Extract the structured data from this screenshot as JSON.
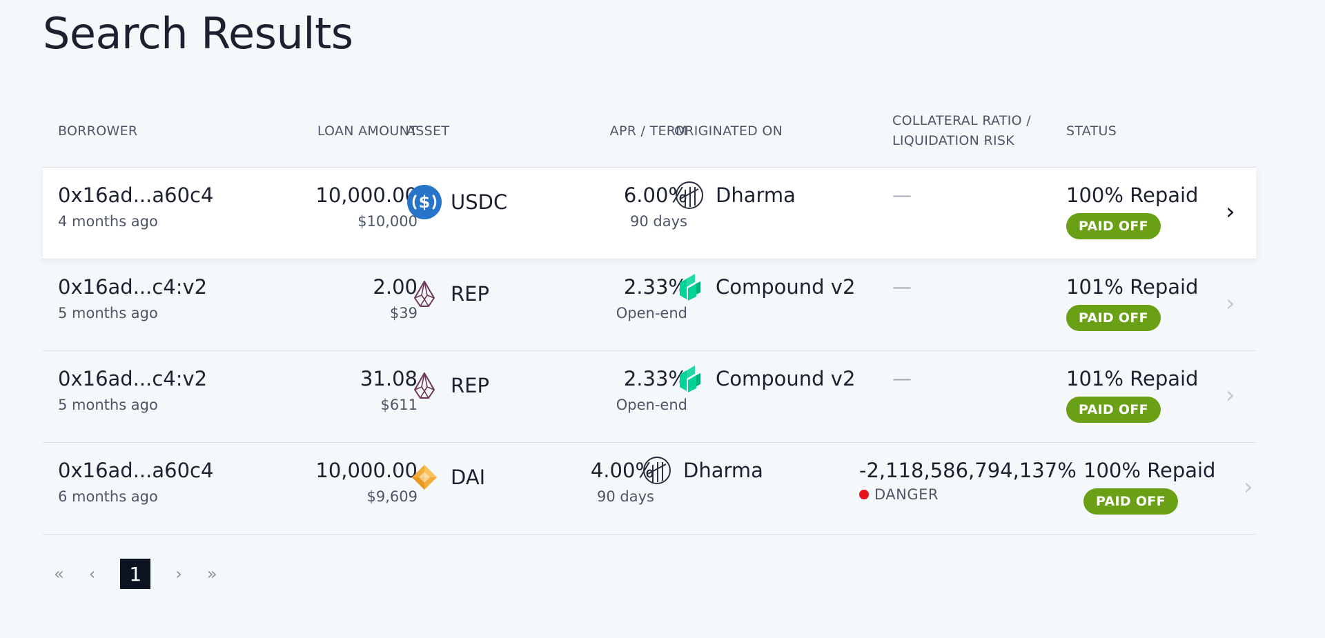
{
  "page": {
    "title": "Search Results"
  },
  "table": {
    "headers": {
      "borrower": "BORROWER",
      "loan_amount": "LOAN AMOUNT",
      "asset": "ASSET",
      "apr_term": "APR / TERM",
      "originated_on": "ORIGINATED ON",
      "collateral_line1": "COLLATERAL RATIO /",
      "collateral_line2": "LIQUIDATION RISK",
      "status": "STATUS"
    },
    "rows": [
      {
        "borrower": "0x16ad...a60c4",
        "age": "4 months ago",
        "amount": "10,000.00",
        "amount_usd": "$10,000",
        "asset": "USDC",
        "asset_icon": "usdc-icon",
        "apr": "6.00%",
        "term": "90 days",
        "originator": "Dharma",
        "originator_icon": "dharma-icon",
        "collateral": "—",
        "repaid": "100% Repaid",
        "status": "PAID OFF"
      },
      {
        "borrower": "0x16ad...c4:v2",
        "age": "5 months ago",
        "amount": "2.00",
        "amount_usd": "$39",
        "asset": "REP",
        "asset_icon": "rep-icon",
        "apr": "2.33%",
        "term": "Open-end",
        "originator": "Compound v2",
        "originator_icon": "compound-icon",
        "collateral": "—",
        "repaid": "101% Repaid",
        "status": "PAID OFF"
      },
      {
        "borrower": "0x16ad...c4:v2",
        "age": "5 months ago",
        "amount": "31.08",
        "amount_usd": "$611",
        "asset": "REP",
        "asset_icon": "rep-icon",
        "apr": "2.33%",
        "term": "Open-end",
        "originator": "Compound v2",
        "originator_icon": "compound-icon",
        "collateral": "—",
        "repaid": "101% Repaid",
        "status": "PAID OFF"
      },
      {
        "borrower": "0x16ad...a60c4",
        "age": "6 months ago",
        "amount": "10,000.00",
        "amount_usd": "$9,609",
        "asset": "DAI",
        "asset_icon": "dai-icon",
        "apr": "4.00%",
        "term": "90 days",
        "originator": "Dharma",
        "originator_icon": "dharma-icon",
        "collateral_ratio": "-2,118,586,794,137%",
        "risk": "DANGER",
        "repaid": "100% Repaid",
        "status": "PAID OFF"
      }
    ]
  },
  "pagination": {
    "first": "«",
    "prev": "‹",
    "current": "1",
    "next": "›",
    "last": "»"
  },
  "colors": {
    "background": "#f5f8fb",
    "paid_badge": "#6aa016",
    "danger": "#e8141b",
    "usdc": "#2775ca",
    "compound": "#00d395",
    "dai": "#f5ac37",
    "rep": "#6d3556"
  }
}
